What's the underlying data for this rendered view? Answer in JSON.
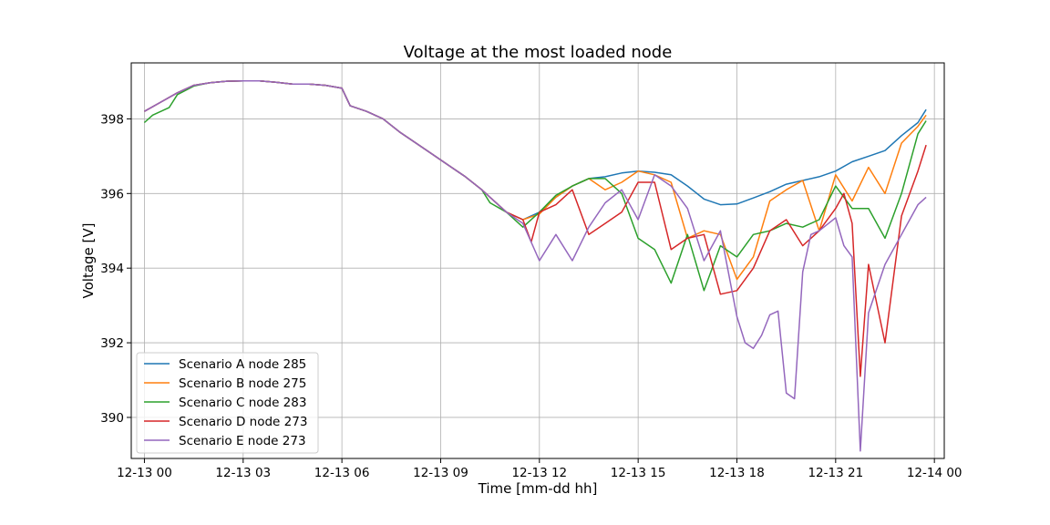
{
  "chart_data": {
    "type": "line",
    "title": "Voltage at the most loaded node",
    "xlabel": "Time [mm-dd hh]",
    "ylabel": "Voltage [V]",
    "xlim": [
      -0.4,
      24.3
    ],
    "ylim": [
      388.9,
      399.5
    ],
    "grid": true,
    "legend_position": "lower-left",
    "xticks": [
      0,
      3,
      6,
      9,
      12,
      15,
      18,
      21,
      24
    ],
    "xtick_labels": [
      "12-13 00",
      "12-13 03",
      "12-13 06",
      "12-13 09",
      "12-13 12",
      "12-13 15",
      "12-13 18",
      "12-13 21",
      "12-14 00"
    ],
    "yticks": [
      390,
      392,
      394,
      396,
      398
    ],
    "ytick_labels": [
      "390",
      "392",
      "394",
      "396",
      "398"
    ],
    "series": [
      {
        "name": "Scenario A node 285",
        "color": "#1f77b4",
        "x": [
          0,
          0.5,
          1,
          1.5,
          2,
          2.5,
          3,
          3.5,
          4,
          4.5,
          5,
          5.5,
          6,
          6.25,
          6.75,
          7.25,
          7.75,
          8.25,
          8.75,
          9.25,
          9.75,
          10.25,
          10.5,
          11,
          11.5,
          12,
          12.5,
          13,
          13.5,
          14,
          14.5,
          15,
          15.5,
          16,
          16.5,
          17,
          17.5,
          18,
          18.5,
          19,
          19.5,
          20,
          20.5,
          21,
          21.5,
          22,
          22.5,
          23,
          23.5,
          23.75
        ],
        "values": [
          398.2,
          398.45,
          398.7,
          398.9,
          398.97,
          399.01,
          399.02,
          399.02,
          398.98,
          398.93,
          398.93,
          398.9,
          398.82,
          398.35,
          398.2,
          398.0,
          397.65,
          397.35,
          397.05,
          396.75,
          396.45,
          396.1,
          395.9,
          395.5,
          395.3,
          395.5,
          395.9,
          396.2,
          396.4,
          396.45,
          396.55,
          396.6,
          396.57,
          396.5,
          396.2,
          395.85,
          395.7,
          395.72,
          395.88,
          396.05,
          396.25,
          396.35,
          396.45,
          396.6,
          396.85,
          397.0,
          397.15,
          397.55,
          397.9,
          398.25
        ]
      },
      {
        "name": "Scenario B node 275",
        "color": "#ff7f0e",
        "x": [
          0,
          0.5,
          1,
          1.5,
          2,
          2.5,
          3,
          3.5,
          4,
          4.5,
          5,
          5.5,
          6,
          6.25,
          6.75,
          7.25,
          7.75,
          8.25,
          8.75,
          9.25,
          9.75,
          10.25,
          10.5,
          11,
          11.5,
          12,
          12.5,
          13,
          13.5,
          14,
          14.5,
          15,
          15.5,
          16,
          16.5,
          17,
          17.5,
          18,
          18.5,
          19,
          19.5,
          20,
          20.5,
          21,
          21.5,
          22,
          22.5,
          23,
          23.5,
          23.75
        ],
        "values": [
          398.2,
          398.45,
          398.7,
          398.9,
          398.97,
          399.01,
          399.02,
          399.02,
          398.98,
          398.93,
          398.93,
          398.9,
          398.82,
          398.35,
          398.2,
          398.0,
          397.65,
          397.35,
          397.05,
          396.75,
          396.45,
          396.1,
          395.9,
          395.5,
          395.3,
          395.45,
          395.9,
          396.2,
          396.4,
          396.1,
          396.3,
          396.6,
          396.5,
          396.3,
          394.8,
          395.0,
          394.9,
          393.7,
          394.3,
          395.8,
          396.1,
          396.35,
          395.0,
          396.5,
          395.8,
          396.7,
          396.0,
          397.35,
          397.8,
          398.1
        ]
      },
      {
        "name": "Scenario C node 283",
        "color": "#2ca02c",
        "x": [
          0,
          0.25,
          0.75,
          1,
          1.5,
          2,
          2.5,
          3,
          3.5,
          4,
          4.5,
          5,
          5.5,
          6,
          6.25,
          6.75,
          7.25,
          7.75,
          8.25,
          8.75,
          9.25,
          9.75,
          10.25,
          10.5,
          11,
          11.5,
          12,
          12.5,
          13,
          13.5,
          14,
          14.5,
          15,
          15.5,
          16,
          16.5,
          17,
          17.5,
          18,
          18.5,
          19,
          19.5,
          20,
          20.5,
          21,
          21.5,
          22,
          22.5,
          23,
          23.5,
          23.75
        ],
        "values": [
          397.9,
          398.1,
          398.3,
          398.65,
          398.88,
          398.97,
          399.01,
          399.02,
          399.02,
          398.98,
          398.93,
          398.93,
          398.9,
          398.82,
          398.35,
          398.2,
          398.0,
          397.65,
          397.35,
          397.05,
          396.75,
          396.45,
          396.1,
          395.75,
          395.5,
          395.1,
          395.5,
          395.95,
          396.2,
          396.4,
          396.4,
          396.0,
          394.8,
          394.5,
          393.6,
          394.9,
          393.4,
          394.6,
          394.3,
          394.9,
          395.0,
          395.2,
          395.1,
          395.3,
          396.2,
          395.6,
          395.6,
          394.8,
          396.0,
          397.6,
          397.95
        ]
      },
      {
        "name": "Scenario D node 273",
        "color": "#d62728",
        "x": [
          0,
          0.5,
          1,
          1.5,
          2,
          2.5,
          3,
          3.5,
          4,
          4.5,
          5,
          5.5,
          6,
          6.25,
          6.75,
          7.25,
          7.75,
          8.25,
          8.75,
          9.25,
          9.75,
          10.25,
          10.5,
          11,
          11.5,
          11.75,
          12,
          12.5,
          13,
          13.5,
          14,
          14.5,
          15,
          15.5,
          16,
          16.5,
          17,
          17.5,
          18,
          18.5,
          19,
          19.5,
          20,
          20.5,
          21,
          21.25,
          21.5,
          21.75,
          22,
          22.5,
          23,
          23.5,
          23.75
        ],
        "values": [
          398.2,
          398.45,
          398.7,
          398.9,
          398.97,
          399.01,
          399.02,
          399.02,
          398.98,
          398.93,
          398.93,
          398.9,
          398.82,
          398.35,
          398.2,
          398.0,
          397.65,
          397.35,
          397.05,
          396.75,
          396.45,
          396.1,
          395.9,
          395.5,
          395.3,
          394.7,
          395.5,
          395.7,
          396.1,
          394.9,
          395.2,
          395.5,
          396.3,
          396.3,
          394.5,
          394.8,
          394.9,
          393.3,
          393.4,
          394.0,
          395.0,
          395.3,
          394.6,
          395.0,
          395.6,
          396.0,
          395.2,
          391.1,
          394.1,
          392.0,
          395.4,
          396.6,
          397.3
        ]
      },
      {
        "name": "Scenario E node 273",
        "color": "#9467bd",
        "x": [
          0,
          0.5,
          1,
          1.5,
          2,
          2.5,
          3,
          3.5,
          4,
          4.5,
          5,
          5.5,
          6,
          6.25,
          6.75,
          7.25,
          7.75,
          8.25,
          8.75,
          9.25,
          9.75,
          10.25,
          10.5,
          11,
          11.5,
          12,
          12.5,
          13,
          13.5,
          14,
          14.5,
          15,
          15.5,
          16,
          16.5,
          17,
          17.5,
          18,
          18.25,
          18.5,
          18.75,
          19,
          19.25,
          19.5,
          19.75,
          20,
          20.25,
          20.5,
          21,
          21.25,
          21.5,
          21.75,
          22,
          22.5,
          23,
          23.5,
          23.75
        ],
        "values": [
          398.2,
          398.45,
          398.7,
          398.9,
          398.97,
          399.01,
          399.02,
          399.02,
          398.98,
          398.93,
          398.93,
          398.9,
          398.82,
          398.35,
          398.2,
          398.0,
          397.65,
          397.35,
          397.05,
          396.75,
          396.45,
          396.1,
          395.9,
          395.5,
          395.2,
          394.2,
          394.9,
          394.2,
          395.1,
          395.75,
          396.1,
          395.3,
          396.5,
          396.2,
          395.6,
          394.2,
          395.0,
          392.7,
          392.0,
          391.85,
          392.2,
          392.75,
          392.85,
          390.65,
          390.5,
          393.9,
          394.9,
          395.0,
          395.35,
          394.6,
          394.3,
          389.1,
          392.8,
          394.1,
          394.9,
          395.7,
          395.9
        ]
      }
    ]
  }
}
